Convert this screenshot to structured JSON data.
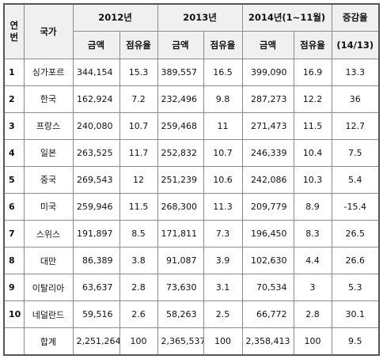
{
  "table": {
    "header": {
      "index": "연번",
      "country": "국가",
      "y2012": "2012년",
      "y2013": "2013년",
      "y2014": "2014년(1~11월)",
      "change": "증감율",
      "amount_2012": "금액",
      "share_2012": "점유율",
      "amount_2013": "금액",
      "share_2013": "점유율",
      "amount_2014": "금액",
      "share_2014": "점유율",
      "change_sub": "(14/13)"
    },
    "rows": [
      [
        "1",
        "싱가포르",
        "344,154",
        "15.3",
        "389,557",
        "16.5",
        "399,090",
        "16.9",
        "13.3"
      ],
      [
        "2",
        "한국",
        "162,924",
        "7.2",
        "232,496",
        "9.8",
        "287,273",
        "12.2",
        "36"
      ],
      [
        "3",
        "프랑스",
        "240,080",
        "10.7",
        "259,468",
        "11",
        "271,473",
        "11.5",
        "12.7"
      ],
      [
        "4",
        "일본",
        "263,525",
        "11.7",
        "252,832",
        "10.7",
        "246,339",
        "10.4",
        "7.5"
      ],
      [
        "5",
        "중국",
        "269,543",
        "12",
        "251,239",
        "10.6",
        "242,086",
        "10.3",
        "5.4"
      ],
      [
        "6",
        "미국",
        "259,946",
        "11.5",
        "268,300",
        "11.3",
        "209,779",
        "8.9",
        "-15.4"
      ],
      [
        "7",
        "스위스",
        "191,897",
        "8.5",
        "171,811",
        "7.3",
        "196,450",
        "8.3",
        "26.5"
      ],
      [
        "8",
        "대만",
        "86,389",
        "3.8",
        "91,087",
        "3.9",
        "102,630",
        "4.4",
        "26.6"
      ],
      [
        "9",
        "이탈리아",
        "63,637",
        "2.8",
        "73,630",
        "3.1",
        "70,534",
        "3",
        "5.3"
      ],
      [
        "10",
        "네덜란드",
        "59,516",
        "2.6",
        "58,263",
        "2.5",
        "66,772",
        "2.8",
        "30.1"
      ]
    ],
    "total": [
      "합계",
      "2,251,264",
      "100",
      "2,365,537",
      "100",
      "2,358,413",
      "100",
      "9.5"
    ]
  }
}
